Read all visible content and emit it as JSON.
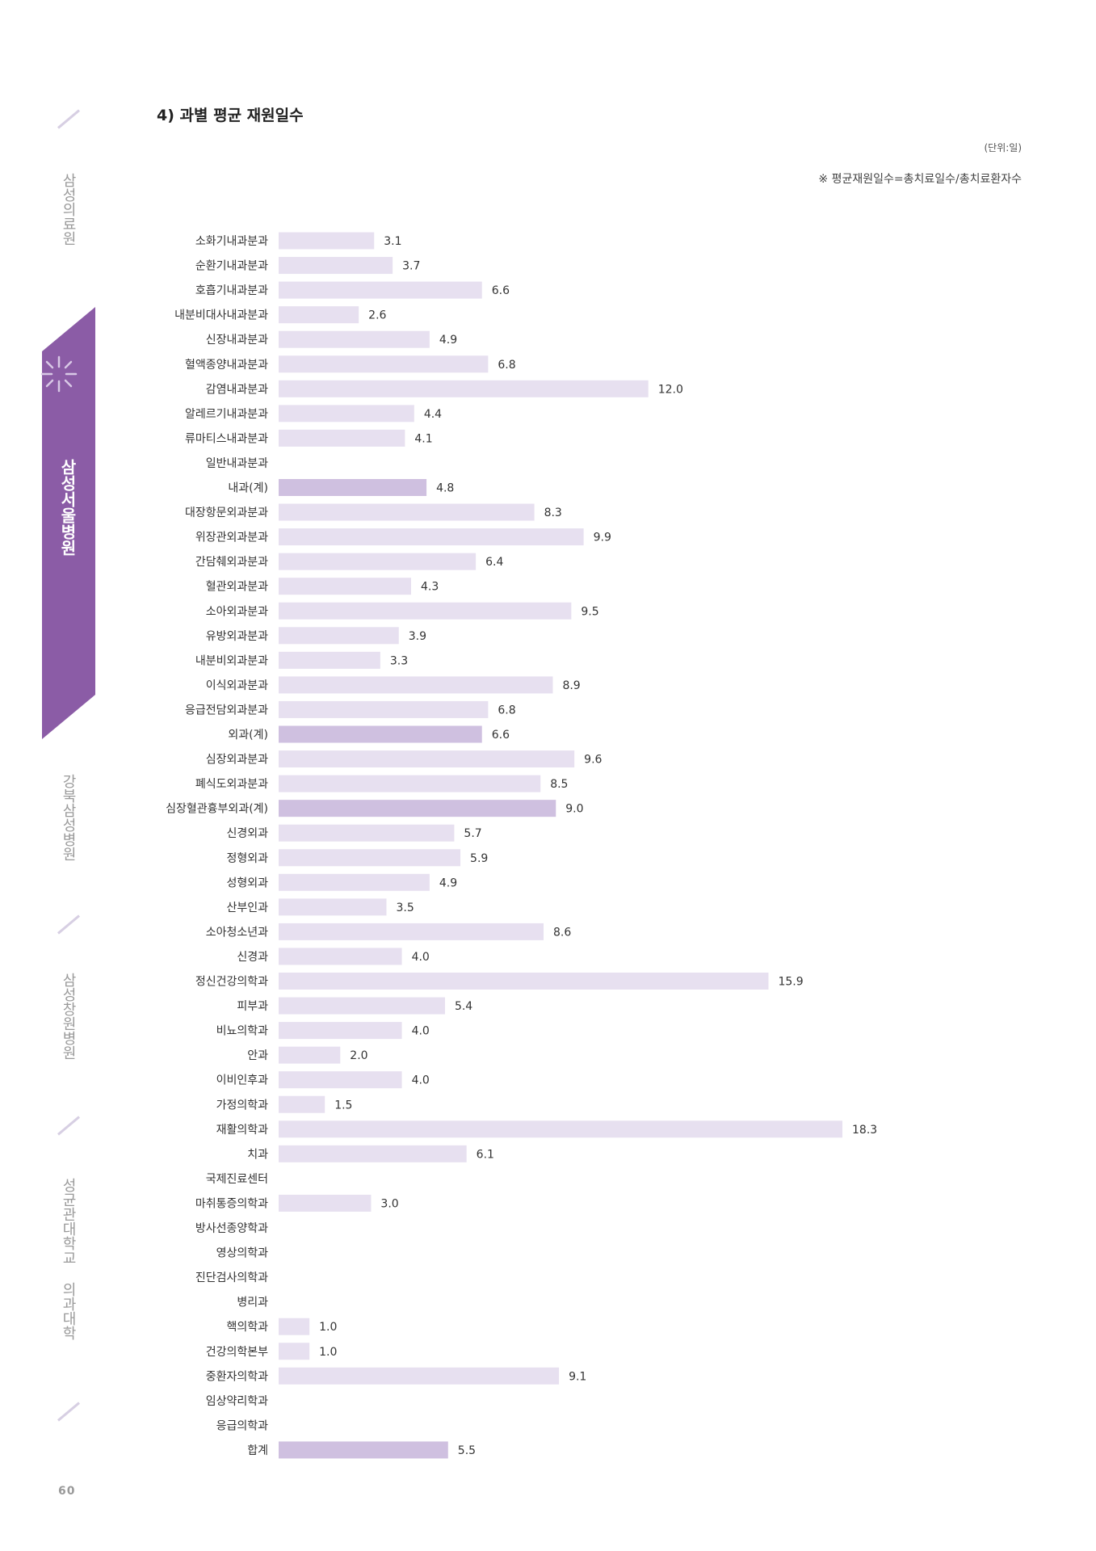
{
  "page": {
    "number": "60"
  },
  "sidebar": {
    "items": [
      {
        "label": "삼성의료원",
        "active": false
      },
      {
        "label": "삼성서울병원",
        "active": true
      },
      {
        "label": "강북삼성병원",
        "active": false
      },
      {
        "label": "삼성창원병원",
        "active": false
      },
      {
        "label": "성균관대학교 의과대학",
        "active": false
      }
    ],
    "accent_color": "#8b5ca6"
  },
  "header": {
    "title": "4) 과별 평균 재원일수",
    "unit": "(단위:일)",
    "note": "※ 평균재원일수=총치료일수/총치료환자수"
  },
  "chart_data": {
    "type": "bar",
    "orientation": "horizontal",
    "title": "4) 과별 평균 재원일수",
    "xlabel": "",
    "ylabel": "",
    "unit": "(단위:일)",
    "xlim": [
      0,
      18.3
    ],
    "grid": false,
    "colors": {
      "regular": "#e7e0f0",
      "subtotal": "#cfc0e0"
    },
    "categories": [
      "소화기내과분과",
      "순환기내과분과",
      "호흡기내과분과",
      "내분비대사내과분과",
      "신장내과분과",
      "혈액종양내과분과",
      "감염내과분과",
      "알레르기내과분과",
      "류마티스내과분과",
      "일반내과분과",
      "내과(계)",
      "대장항문외과분과",
      "위장관외과분과",
      "간담췌외과분과",
      "혈관외과분과",
      "소아외과분과",
      "유방외과분과",
      "내분비외과분과",
      "이식외과분과",
      "응급전담외과분과",
      "외과(계)",
      "심장외과분과",
      "폐식도외과분과",
      "심장혈관흉부외과(계)",
      "신경외과",
      "정형외과",
      "성형외과",
      "산부인과",
      "소아청소년과",
      "신경과",
      "정신건강의학과",
      "피부과",
      "비뇨의학과",
      "안과",
      "이비인후과",
      "가정의학과",
      "재활의학과",
      "치과",
      "국제진료센터",
      "마취통증의학과",
      "방사선종양학과",
      "영상의학과",
      "진단검사의학과",
      "병리과",
      "핵의학과",
      "건강의학본부",
      "중환자의학과",
      "임상약리학과",
      "응급의학과",
      "합계"
    ],
    "values": [
      3.1,
      3.7,
      6.6,
      2.6,
      4.9,
      6.8,
      12.0,
      4.4,
      4.1,
      null,
      4.8,
      8.3,
      9.9,
      6.4,
      4.3,
      9.5,
      3.9,
      3.3,
      8.9,
      6.8,
      6.6,
      9.6,
      8.5,
      9.0,
      5.7,
      5.9,
      4.9,
      3.5,
      8.6,
      4.0,
      15.9,
      5.4,
      4.0,
      2.0,
      4.0,
      1.5,
      18.3,
      6.1,
      null,
      3.0,
      null,
      null,
      null,
      null,
      1.0,
      1.0,
      9.1,
      null,
      null,
      5.5
    ],
    "labels": [
      "3.1",
      "3.7",
      "6.6",
      "2.6",
      "4.9",
      "6.8",
      "12.0",
      "4.4",
      "4.1",
      "",
      "4.8",
      "8.3",
      "9.9",
      "6.4",
      "4.3",
      "9.5",
      "3.9",
      "3.3",
      "8.9",
      "6.8",
      "6.6",
      "9.6",
      "8.5",
      "9.0",
      "5.7",
      "5.9",
      "4.9",
      "3.5",
      "8.6",
      "4.0",
      "15.9",
      "5.4",
      "4.0",
      "2.0",
      "4.0",
      "1.5",
      "18.3",
      "6.1",
      "",
      "3.0",
      "",
      "",
      "",
      "",
      "1.0",
      "1.0",
      "9.1",
      "",
      "",
      "5.5"
    ],
    "subtotal_categories": [
      "내과(계)",
      "외과(계)",
      "심장혈관흉부외과(계)",
      "합계"
    ]
  }
}
